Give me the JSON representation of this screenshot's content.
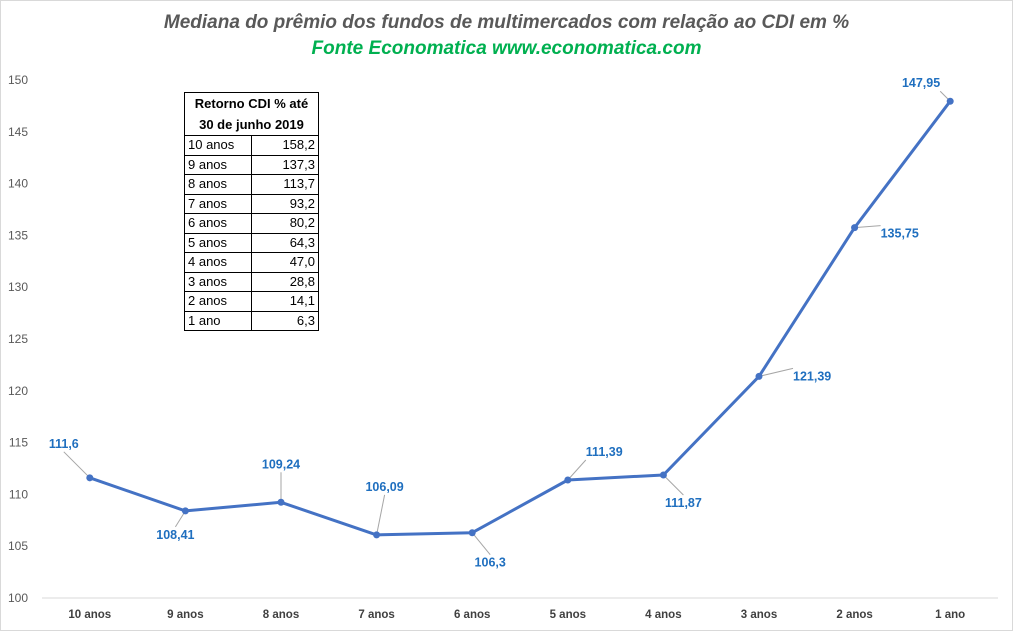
{
  "title": "Mediana do prêmio dos fundos de multimercados  com relação ao CDI em %",
  "subtitle": "Fonte Economatica www.economatica.com",
  "chart_data": {
    "type": "line",
    "title": "Mediana do prêmio dos fundos de multimercados  com relação ao CDI em %",
    "subtitle": "Fonte Economatica www.economatica.com",
    "categories": [
      "10 anos",
      "9 anos",
      "8 anos",
      "7 anos",
      "6 anos",
      "5 anos",
      "4 anos",
      "3 anos",
      "2 anos",
      "1 ano"
    ],
    "values": [
      111.6,
      108.41,
      109.24,
      106.09,
      106.3,
      111.39,
      111.87,
      121.39,
      135.75,
      147.95
    ],
    "value_labels": [
      "111,6",
      "108,41",
      "109,24",
      "106,09",
      "106,3",
      "111,39",
      "111,87",
      "121,39",
      "135,75",
      "147,95"
    ],
    "ylim": [
      100,
      150
    ],
    "yticks": [
      100,
      105,
      110,
      115,
      120,
      125,
      130,
      135,
      140,
      145,
      150
    ],
    "grid": false,
    "legend": "none",
    "line_color": "#4472c4",
    "label_color": "#1f6fbf"
  },
  "table": {
    "header_line1": "Retorno CDI % até",
    "header_line2": "30 de junho 2019",
    "rows": [
      {
        "label": "10 anos",
        "value": "158,2"
      },
      {
        "label": "9 anos",
        "value": "137,3"
      },
      {
        "label": "8 anos",
        "value": "113,7"
      },
      {
        "label": "7 anos",
        "value": "93,2"
      },
      {
        "label": "6 anos",
        "value": "80,2"
      },
      {
        "label": "5 anos",
        "value": "64,3"
      },
      {
        "label": "4 anos",
        "value": "47,0"
      },
      {
        "label": "3 anos",
        "value": "28,8"
      },
      {
        "label": "2 anos",
        "value": "14,1"
      },
      {
        "label": "1 ano",
        "value": "6,3"
      }
    ]
  }
}
